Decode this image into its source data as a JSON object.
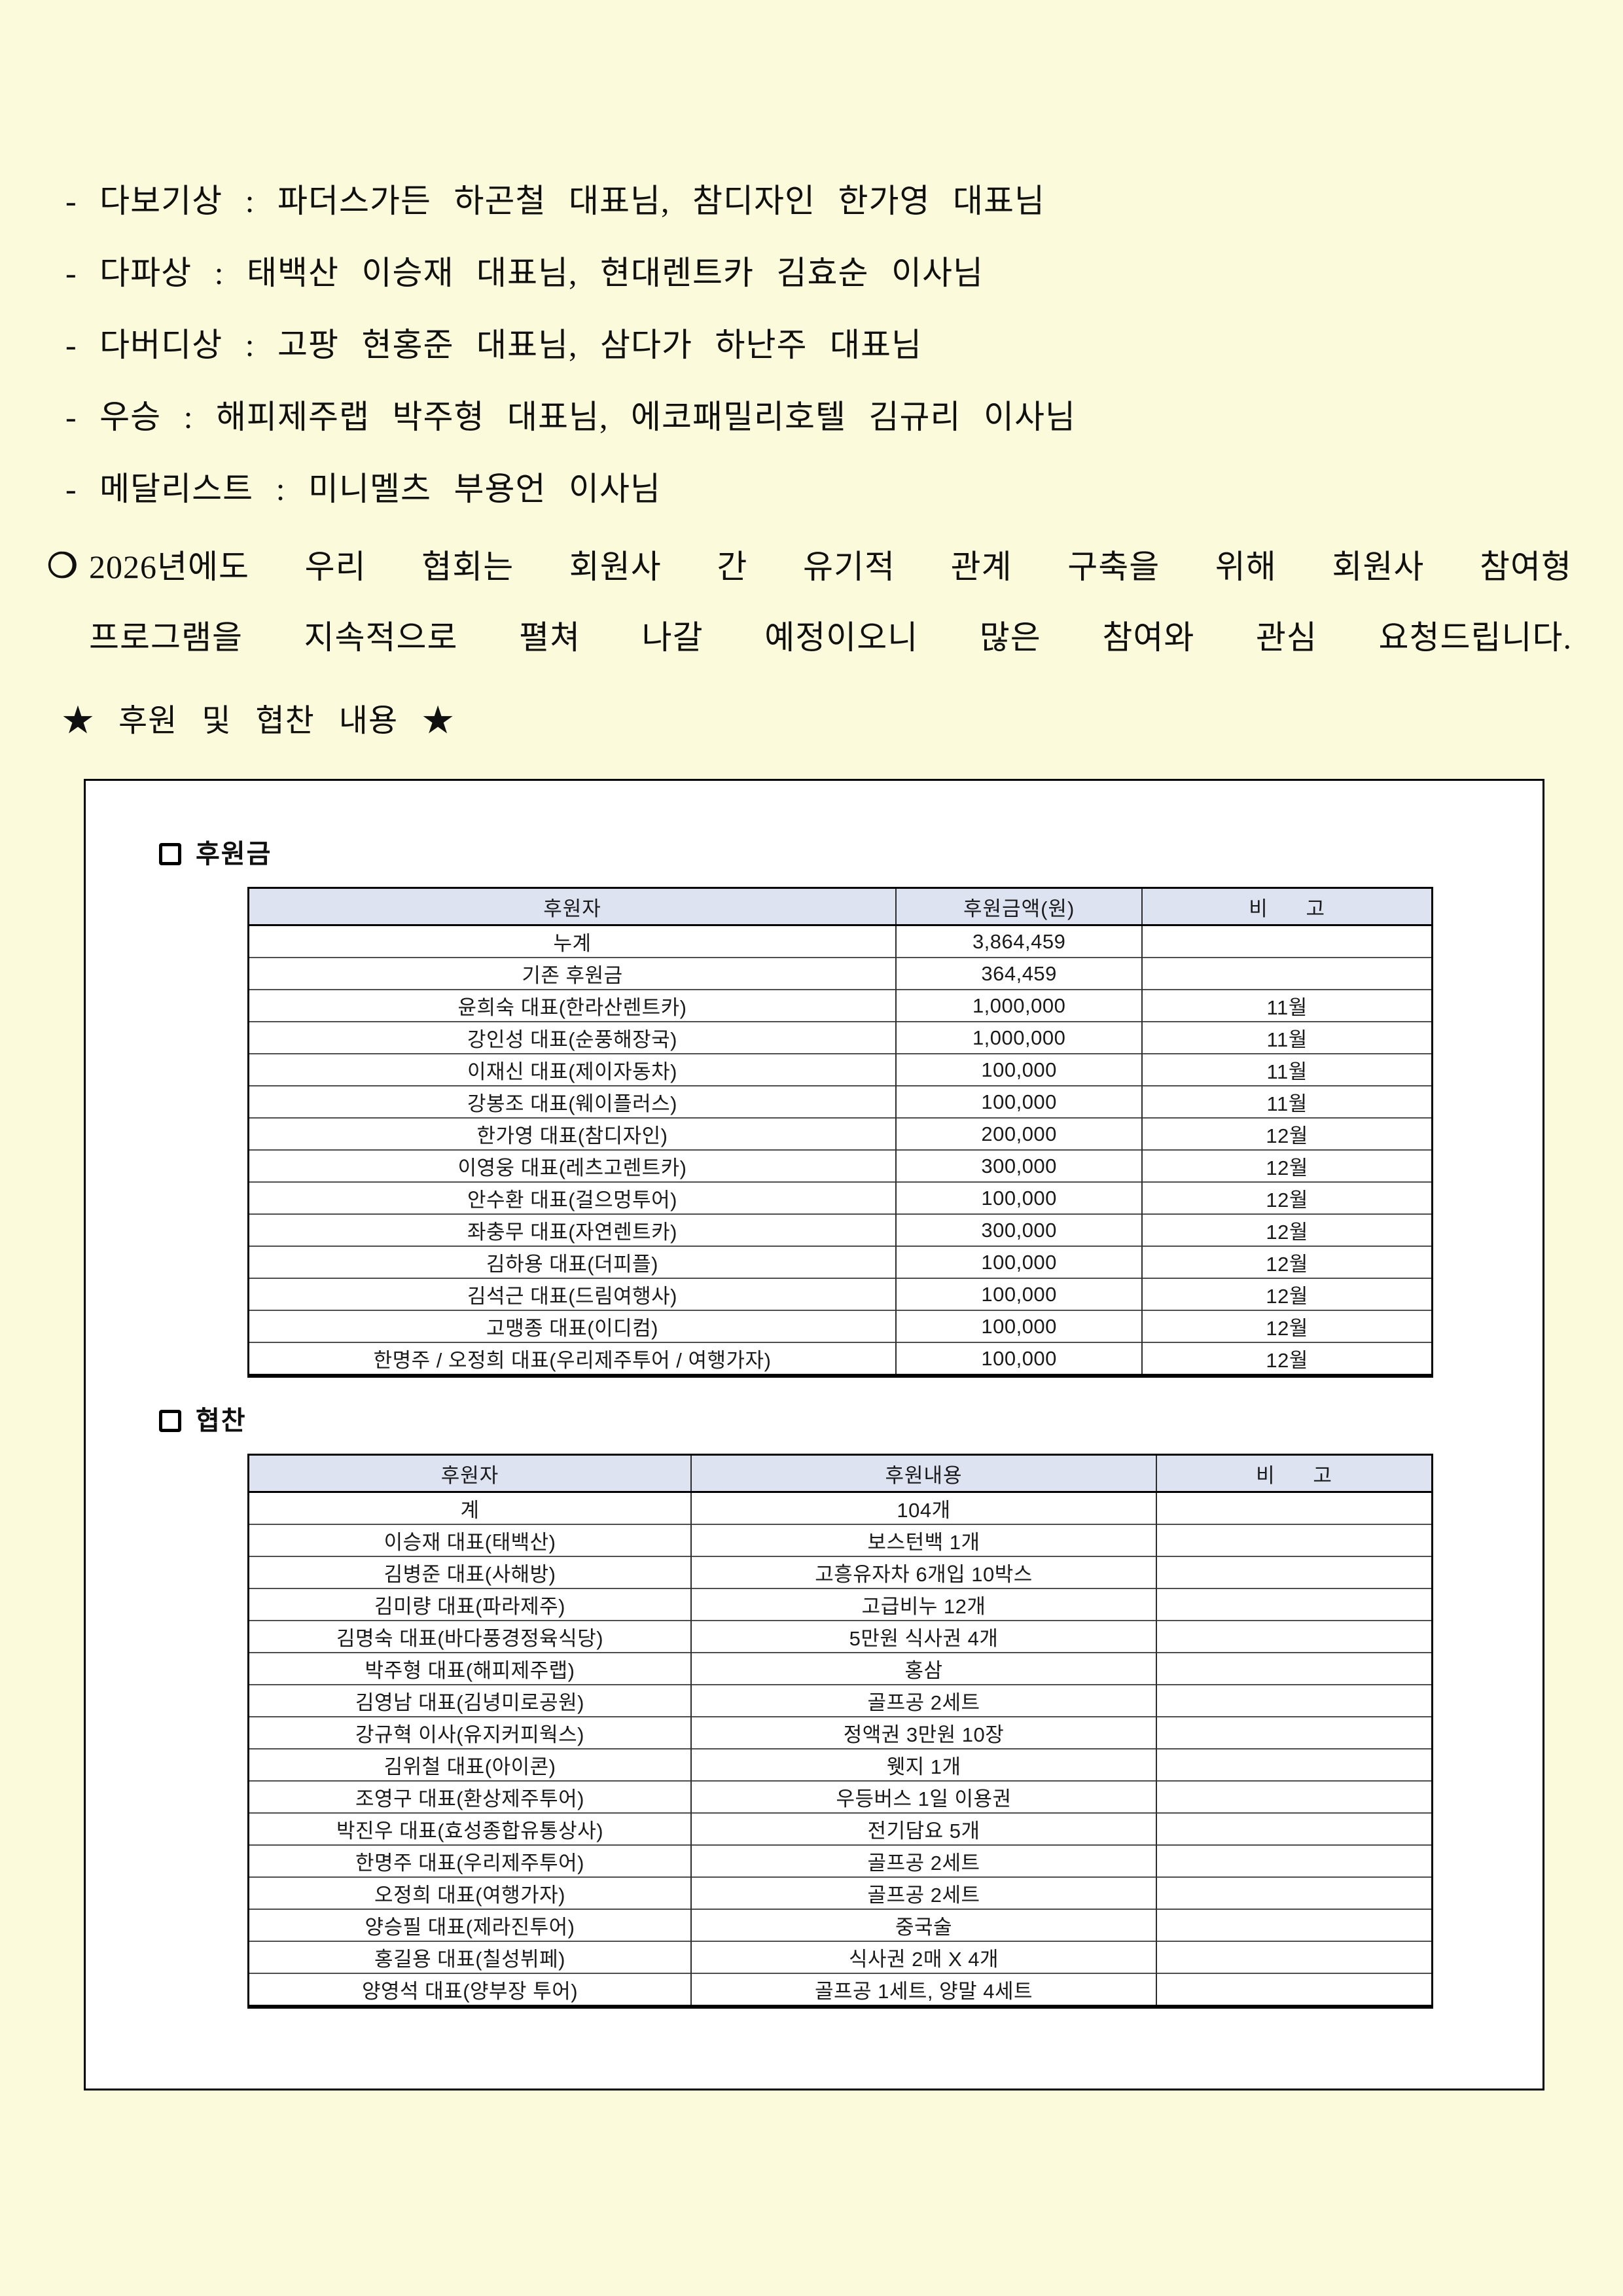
{
  "colors": {
    "page_bg": "#fbfbdc",
    "table_header_bg": "#dee3f2"
  },
  "awards": {
    "items": [
      "- 다보기상 : 파더스가든 하곤철 대표님, 참디자인 한가영 대표님",
      "- 다파상 : 태백산 이승재 대표님, 현대렌트카 김효순 이사님",
      "- 다버디상 : 고팡 현홍준 대표님, 삼다가 하난주 대표님",
      "- 우승 : 해피제주랩 박주형 대표님, 에코패밀리호텔 김규리 이사님",
      "- 메달리스트 : 미니멜츠 부용언 이사님"
    ]
  },
  "notice": {
    "marker": "❍",
    "line1": "2026년에도 우리 협회는 회원사 간 유기적 관계 구축을 위해 회원사 참여형",
    "line2": "프로그램을 지속적으로 펼쳐 나갈 예정이오니 많은 참여와 관심 요청드립니다."
  },
  "section_heading": "★ 후원 및 협찬 내용 ★",
  "donation": {
    "title": "후원금",
    "headers": [
      "후원자",
      "후원금액(원)",
      "비      고"
    ],
    "rows": [
      [
        "누계",
        "3,864,459",
        ""
      ],
      [
        "기존 후원금",
        "364,459",
        ""
      ],
      [
        "윤희숙 대표(한라산렌트카)",
        "1,000,000",
        "11월"
      ],
      [
        "강인성 대표(순풍해장국)",
        "1,000,000",
        "11월"
      ],
      [
        "이재신 대표(제이자동차)",
        "100,000",
        "11월"
      ],
      [
        "강봉조 대표(웨이플러스)",
        "100,000",
        "11월"
      ],
      [
        "한가영 대표(참디자인)",
        "200,000",
        "12월"
      ],
      [
        "이영웅 대표(레츠고렌트카)",
        "300,000",
        "12월"
      ],
      [
        "안수환 대표(걸으멍투어)",
        "100,000",
        "12월"
      ],
      [
        "좌충무 대표(자연렌트카)",
        "300,000",
        "12월"
      ],
      [
        "김하용 대표(더피플)",
        "100,000",
        "12월"
      ],
      [
        "김석근 대표(드림여행사)",
        "100,000",
        "12월"
      ],
      [
        "고맹종 대표(이디컴)",
        "100,000",
        "12월"
      ],
      [
        "한명주 / 오정희 대표(우리제주투어 / 여행가자)",
        "100,000",
        "12월"
      ]
    ]
  },
  "sponsorship": {
    "title": "협찬",
    "headers": [
      "후원자",
      "후원내용",
      "비      고"
    ],
    "rows": [
      [
        "계",
        "104개",
        ""
      ],
      [
        "이승재 대표(태백산)",
        "보스턴백 1개",
        ""
      ],
      [
        "김병준 대표(사해방)",
        "고흥유자차 6개입 10박스",
        ""
      ],
      [
        "김미량 대표(파라제주)",
        "고급비누 12개",
        ""
      ],
      [
        "김명숙 대표(바다풍경정육식당)",
        "5만원 식사권 4개",
        ""
      ],
      [
        "박주형 대표(해피제주랩)",
        "홍삼",
        ""
      ],
      [
        "김영남 대표(김녕미로공원)",
        "골프공 2세트",
        ""
      ],
      [
        "강규혁 이사(유지커피웍스)",
        "정액권 3만원 10장",
        ""
      ],
      [
        "김위철 대표(아이콘)",
        "웻지 1개",
        ""
      ],
      [
        "조영구 대표(환상제주투어)",
        "우등버스 1일 이용권",
        ""
      ],
      [
        "박진우 대표(효성종합유통상사)",
        "전기담요 5개",
        ""
      ],
      [
        "한명주 대표(우리제주투어)",
        "골프공 2세트",
        ""
      ],
      [
        "오정희 대표(여행가자)",
        "골프공 2세트",
        ""
      ],
      [
        "양승필 대표(제라진투어)",
        "중국술",
        ""
      ],
      [
        "홍길용 대표(칠성뷔페)",
        "식사권 2매 X 4개",
        ""
      ],
      [
        "양영석 대표(양부장 투어)",
        "골프공 1세트, 양말 4세트",
        ""
      ]
    ]
  }
}
